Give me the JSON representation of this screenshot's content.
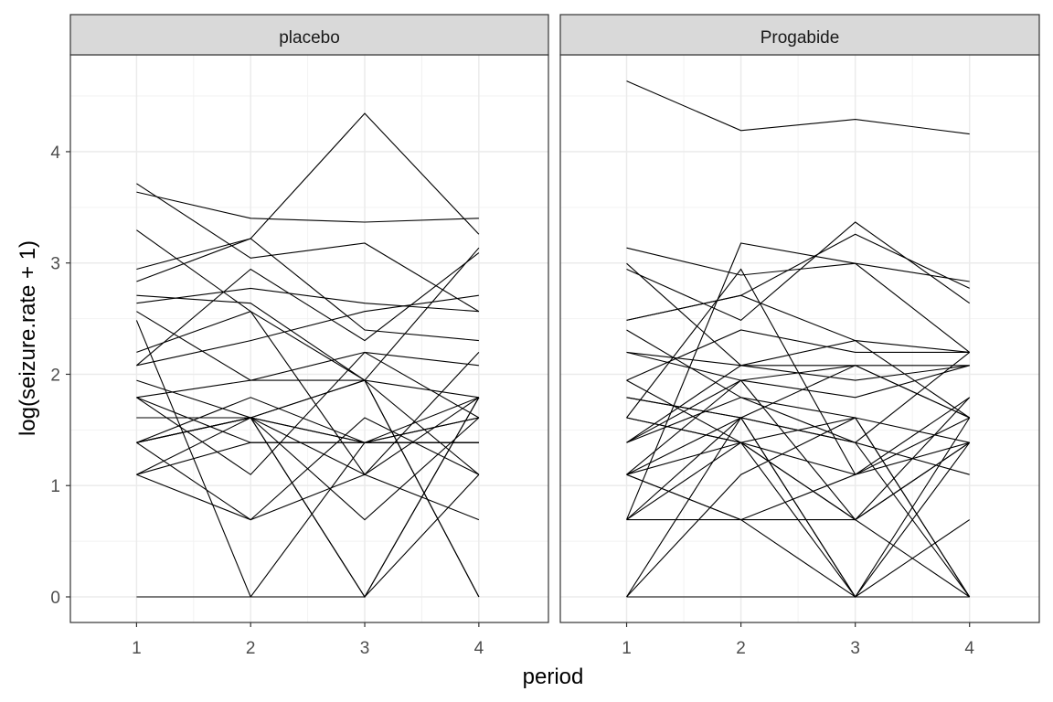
{
  "chart_data": {
    "type": "line",
    "title": "",
    "xlabel": "period",
    "ylabel": "log(seizure.rate + 1)",
    "y_transform": "log(x + 1)",
    "x": [
      1,
      2,
      3,
      4
    ],
    "x_ticks": [
      "1",
      "2",
      "3",
      "4"
    ],
    "y_ticks": [
      "0",
      "1",
      "2",
      "3",
      "4"
    ],
    "xlim": [
      0.42,
      4.61
    ],
    "ylim": [
      -0.23,
      4.87
    ],
    "grid": true,
    "line_color": "#000000",
    "facets": [
      {
        "label": "placebo",
        "series_seizure_rate": [
          [
            5,
            3,
            3,
            3
          ],
          [
            3,
            5,
            3,
            3
          ],
          [
            2,
            4,
            0,
            5
          ],
          [
            4,
            4,
            1,
            4
          ],
          [
            7,
            18,
            9,
            21
          ],
          [
            5,
            2,
            8,
            7
          ],
          [
            6,
            4,
            0,
            2
          ],
          [
            40,
            20,
            23,
            12
          ],
          [
            5,
            6,
            6,
            5
          ],
          [
            14,
            13,
            6,
            0
          ],
          [
            26,
            12,
            6,
            22
          ],
          [
            12,
            6,
            8,
            4
          ],
          [
            4,
            4,
            6,
            2
          ],
          [
            7,
            9,
            12,
            14
          ],
          [
            16,
            24,
            10,
            9
          ],
          [
            11,
            0,
            0,
            5
          ],
          [
            0,
            0,
            3,
            3
          ],
          [
            37,
            29,
            28,
            29
          ],
          [
            3,
            4,
            2,
            5
          ],
          [
            3,
            4,
            6,
            0
          ],
          [
            3,
            4,
            3,
            4
          ],
          [
            3,
            4,
            3,
            4
          ],
          [
            2,
            3,
            3,
            5
          ],
          [
            8,
            12,
            2,
            8
          ],
          [
            18,
            24,
            76,
            25
          ],
          [
            2,
            1,
            2,
            1
          ],
          [
            3,
            1,
            4,
            2
          ],
          [
            13,
            15,
            13,
            12
          ]
        ]
      },
      {
        "label": "Progabide",
        "series_seizure_rate": [
          [
            11,
            14,
            9,
            8
          ],
          [
            8,
            7,
            9,
            4
          ],
          [
            0,
            4,
            3,
            0
          ],
          [
            3,
            6,
            1,
            3
          ],
          [
            2,
            6,
            7,
            4
          ],
          [
            4,
            3,
            1,
            3
          ],
          [
            22,
            17,
            19,
            16
          ],
          [
            5,
            4,
            7,
            4
          ],
          [
            2,
            4,
            0,
            4
          ],
          [
            3,
            7,
            7,
            7
          ],
          [
            4,
            18,
            2,
            5
          ],
          [
            2,
            1,
            1,
            0
          ],
          [
            0,
            2,
            4,
            0
          ],
          [
            5,
            4,
            0,
            3
          ],
          [
            11,
            14,
            25,
            15
          ],
          [
            10,
            5,
            3,
            8
          ],
          [
            19,
            7,
            6,
            7
          ],
          [
            1,
            1,
            2,
            3
          ],
          [
            6,
            10,
            8,
            8
          ],
          [
            2,
            1,
            0,
            0
          ],
          [
            102,
            65,
            72,
            63
          ],
          [
            4,
            3,
            2,
            4
          ],
          [
            8,
            6,
            5,
            7
          ],
          [
            1,
            3,
            1,
            5
          ],
          [
            18,
            11,
            28,
            13
          ],
          [
            6,
            3,
            4,
            0
          ],
          [
            3,
            5,
            4,
            3
          ],
          [
            1,
            23,
            19,
            8
          ],
          [
            2,
            3,
            0,
            1
          ],
          [
            0,
            0,
            0,
            0
          ],
          [
            1,
            4,
            3,
            2
          ]
        ]
      }
    ]
  }
}
